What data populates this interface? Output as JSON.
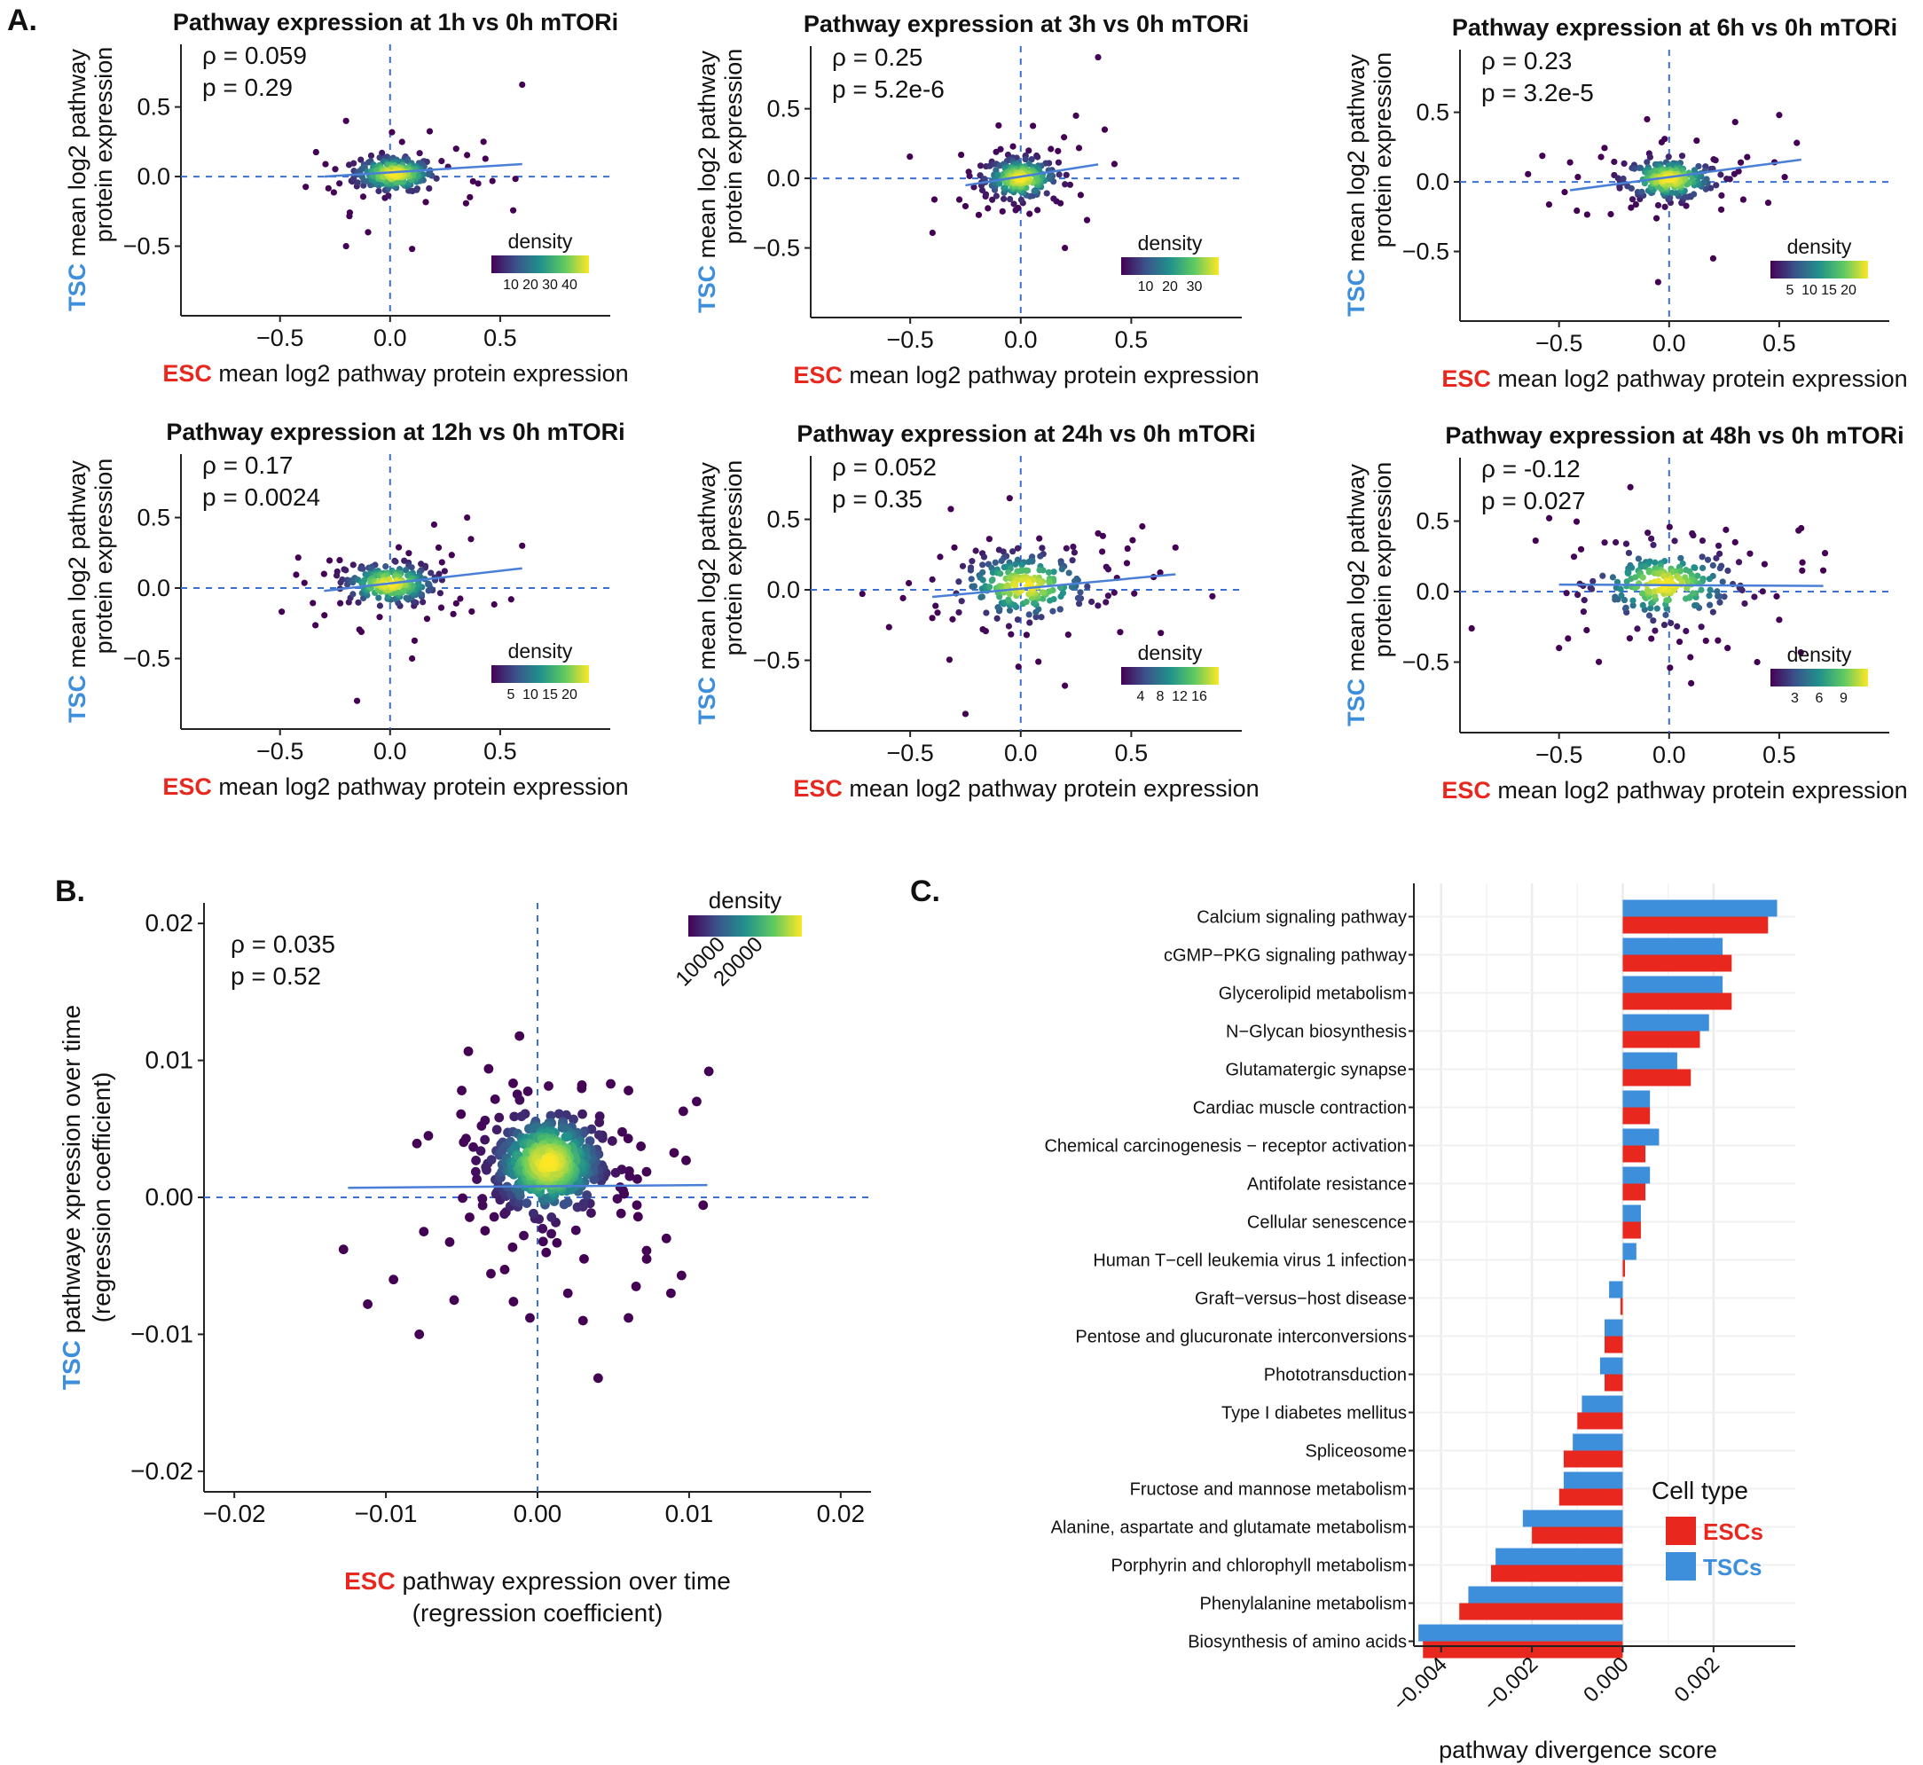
{
  "colors": {
    "esc": "#e8281e",
    "tsc": "#3d8fdc",
    "ref_line": "#3a6fd8",
    "fit_line": "#4a7fd8",
    "axis": "#222222",
    "grid": "#ebebeb"
  },
  "panel_labels": [
    "A.",
    "B.",
    "C."
  ],
  "chart_data": [
    {
      "type": "scatter",
      "panel": "A",
      "title": "Pathway expression at 1h vs 0h mTORi",
      "stats": [
        "ρ = 0.059",
        "p = 0.29"
      ],
      "xlabel_prefix": "ESC",
      "xlabel_rest": " mean log2 pathway protein expression",
      "ylabel_prefix": "TSC",
      "ylabel_line1": " mean log2 pathway",
      "ylabel_line2": "protein expression",
      "xlim": [
        -0.95,
        1.0
      ],
      "ylim": [
        -1.0,
        0.95
      ],
      "xticks": [
        -0.5,
        0.0,
        0.5
      ],
      "xtick_labels": [
        "−0.5",
        "0.0",
        "0.5"
      ],
      "yticks": [
        0.5,
        0.0,
        -0.5
      ],
      "ytick_labels": [
        "0.5",
        "0.0",
        "−0.5"
      ],
      "fit": [
        [
          -0.3,
          0.0
        ],
        [
          0.6,
          0.09
        ]
      ],
      "core": {
        "cx": 0.02,
        "cy": 0.02,
        "sx": 0.09,
        "sy": 0.06
      },
      "outliers": [
        [
          0.6,
          0.66
        ],
        [
          -0.2,
          -0.5
        ],
        [
          0.1,
          -0.52
        ],
        [
          -0.2,
          0.4
        ],
        [
          0.3,
          0.2
        ],
        [
          0.4,
          -0.05
        ],
        [
          -0.1,
          -0.4
        ]
      ],
      "density_label": "density",
      "density_ticks": [
        "10",
        "20",
        "30",
        "40"
      ]
    },
    {
      "type": "scatter",
      "panel": "A",
      "title": "Pathway expression at 3h vs 0h mTORi",
      "stats": [
        "ρ = 0.25",
        "p = 5.2e-6"
      ],
      "xlabel_prefix": "ESC",
      "xlabel_rest": " mean log2 pathway protein expression",
      "ylabel_prefix": "TSC",
      "ylabel_line1": " mean log2 pathway",
      "ylabel_line2": "protein expression",
      "xlim": [
        -0.95,
        1.0
      ],
      "ylim": [
        -1.0,
        0.95
      ],
      "xticks": [
        -0.5,
        0.0,
        0.5
      ],
      "xtick_labels": [
        "−0.5",
        "0.0",
        "0.5"
      ],
      "yticks": [
        0.5,
        0.0,
        -0.5
      ],
      "ytick_labels": [
        "0.5",
        "0.0",
        "−0.5"
      ],
      "fit": [
        [
          -0.25,
          -0.05
        ],
        [
          0.35,
          0.1
        ]
      ],
      "core": {
        "cx": 0.0,
        "cy": 0.0,
        "sx": 0.08,
        "sy": 0.07
      },
      "outliers": [
        [
          0.35,
          0.87
        ],
        [
          0.25,
          0.45
        ],
        [
          -0.1,
          0.38
        ],
        [
          0.38,
          0.35
        ],
        [
          0.2,
          -0.5
        ],
        [
          -0.25,
          -0.2
        ],
        [
          0.3,
          -0.3
        ]
      ],
      "density_label": "density",
      "density_ticks": [
        "10",
        "20",
        "30"
      ]
    },
    {
      "type": "scatter",
      "panel": "A",
      "title": "Pathway expression at 6h vs 0h mTORi",
      "stats": [
        "ρ = 0.23",
        "p = 3.2e-5"
      ],
      "xlabel_prefix": "ESC",
      "xlabel_rest": " mean log2 pathway protein expression",
      "ylabel_prefix": "TSC",
      "ylabel_line1": " mean log2 pathway",
      "ylabel_line2": "protein expression",
      "xlim": [
        -0.95,
        1.0
      ],
      "ylim": [
        -1.0,
        0.95
      ],
      "xticks": [
        -0.5,
        0.0,
        0.5
      ],
      "xtick_labels": [
        "−0.5",
        "0.0",
        "0.5"
      ],
      "yticks": [
        0.5,
        0.0,
        -0.5
      ],
      "ytick_labels": [
        "0.5",
        "0.0",
        "−0.5"
      ],
      "fit": [
        [
          -0.45,
          -0.06
        ],
        [
          0.6,
          0.16
        ]
      ],
      "core": {
        "cx": 0.0,
        "cy": 0.02,
        "sx": 0.1,
        "sy": 0.07
      },
      "outliers": [
        [
          -0.05,
          -0.72
        ],
        [
          0.5,
          0.48
        ],
        [
          0.58,
          0.28
        ],
        [
          0.3,
          0.43
        ],
        [
          0.45,
          -0.15
        ],
        [
          -0.45,
          0.14
        ],
        [
          -0.1,
          0.45
        ],
        [
          0.2,
          -0.55
        ]
      ],
      "density_label": "density",
      "density_ticks": [
        "5",
        "10",
        "15",
        "20"
      ]
    },
    {
      "type": "scatter",
      "panel": "A",
      "title": "Pathway expression at 12h vs 0h mTORi",
      "stats": [
        "ρ = 0.17",
        "p = 0.0024"
      ],
      "xlabel_prefix": "ESC",
      "xlabel_rest": " mean log2 pathway protein expression",
      "ylabel_prefix": "TSC",
      "ylabel_line1": " mean log2 pathway",
      "ylabel_line2": "protein expression",
      "xlim": [
        -0.95,
        1.0
      ],
      "ylim": [
        -1.0,
        0.95
      ],
      "xticks": [
        -0.5,
        0.0,
        0.5
      ],
      "xtick_labels": [
        "−0.5",
        "0.0",
        "0.5"
      ],
      "yticks": [
        0.5,
        0.0,
        -0.5
      ],
      "ytick_labels": [
        "0.5",
        "0.0",
        "−0.5"
      ],
      "fit": [
        [
          -0.3,
          -0.02
        ],
        [
          0.6,
          0.14
        ]
      ],
      "core": {
        "cx": 0.0,
        "cy": 0.03,
        "sx": 0.1,
        "sy": 0.07
      },
      "outliers": [
        [
          -0.15,
          -0.8
        ],
        [
          0.35,
          0.5
        ],
        [
          0.6,
          0.3
        ],
        [
          0.1,
          -0.5
        ],
        [
          -0.3,
          0.1
        ],
        [
          0.55,
          -0.08
        ],
        [
          0.2,
          0.45
        ]
      ],
      "density_label": "density",
      "density_ticks": [
        "5",
        "10",
        "15",
        "20"
      ]
    },
    {
      "type": "scatter",
      "panel": "A",
      "title": "Pathway expression at 24h vs 0h mTORi",
      "stats": [
        "ρ = 0.052",
        "p = 0.35"
      ],
      "xlabel_prefix": "ESC",
      "xlabel_rest": " mean log2 pathway protein expression",
      "ylabel_prefix": "TSC",
      "ylabel_line1": " mean log2 pathway",
      "ylabel_line2": "protein expression",
      "xlim": [
        -0.95,
        1.0
      ],
      "ylim": [
        -1.0,
        0.95
      ],
      "xticks": [
        -0.5,
        0.0,
        0.5
      ],
      "xtick_labels": [
        "−0.5",
        "0.0",
        "0.5"
      ],
      "yticks": [
        0.5,
        0.0,
        -0.5
      ],
      "ytick_labels": [
        "0.5",
        "0.0",
        "−0.5"
      ],
      "fit": [
        [
          -0.4,
          -0.05
        ],
        [
          0.7,
          0.11
        ]
      ],
      "core": {
        "cx": 0.02,
        "cy": 0.03,
        "sx": 0.14,
        "sy": 0.11
      },
      "outliers": [
        [
          -0.25,
          -0.88
        ],
        [
          -0.05,
          0.65
        ],
        [
          0.55,
          0.45
        ],
        [
          0.7,
          0.3
        ],
        [
          0.2,
          -0.68
        ],
        [
          -0.4,
          -0.2
        ],
        [
          0.45,
          -0.3
        ],
        [
          -0.3,
          0.3
        ],
        [
          0.35,
          0.4
        ]
      ],
      "density_label": "density",
      "density_ticks": [
        "4",
        "8",
        "12",
        "16"
      ]
    },
    {
      "type": "scatter",
      "panel": "A",
      "title": "Pathway expression at 48h vs 0h mTORi",
      "stats": [
        "ρ = -0.12",
        "p = 0.027"
      ],
      "xlabel_prefix": "ESC",
      "xlabel_rest": " mean log2 pathway protein expression",
      "ylabel_prefix": "TSC",
      "ylabel_line1": " mean log2 pathway",
      "ylabel_line2": "protein expression",
      "xlim": [
        -0.95,
        1.0
      ],
      "ylim": [
        -1.0,
        0.95
      ],
      "xticks": [
        -0.5,
        0.0,
        0.5
      ],
      "xtick_labels": [
        "−0.5",
        "0.0",
        "0.5"
      ],
      "yticks": [
        0.5,
        0.0,
        -0.5
      ],
      "ytick_labels": [
        "0.5",
        "0.0",
        "−0.5"
      ],
      "fit": [
        [
          -0.5,
          0.05
        ],
        [
          0.7,
          0.04
        ]
      ],
      "core": {
        "cx": -0.02,
        "cy": 0.05,
        "sx": 0.15,
        "sy": 0.12
      },
      "outliers": [
        [
          0.6,
          0.45
        ],
        [
          0.7,
          0.15
        ],
        [
          -0.5,
          -0.4
        ],
        [
          0.1,
          -0.65
        ],
        [
          0.4,
          -0.5
        ],
        [
          -0.4,
          0.3
        ],
        [
          0.3,
          0.35
        ],
        [
          0.5,
          -0.2
        ]
      ],
      "density_label": "density",
      "density_ticks": [
        "3",
        "6",
        "9"
      ]
    },
    {
      "type": "scatter",
      "panel": "B",
      "stats": [
        "ρ = 0.035",
        "p = 0.52"
      ],
      "xlabel_prefix": "ESC",
      "xlabel_rest": " pathway expression over time",
      "xlabel_line2": "(regression coefficient)",
      "ylabel_prefix": "TSC",
      "ylabel_rest": " pathwaye xpression over time",
      "ylabel_line2": "(regression coefficient)",
      "xlim": [
        -0.022,
        0.022
      ],
      "ylim": [
        -0.0215,
        0.0215
      ],
      "xticks": [
        -0.02,
        -0.01,
        0.0,
        0.01,
        0.02
      ],
      "xtick_labels": [
        "−0.02",
        "−0.01",
        "0.00",
        "0.01",
        "0.02"
      ],
      "yticks": [
        0.02,
        0.01,
        0.0,
        -0.01,
        -0.02
      ],
      "ytick_labels": [
        "0.02",
        "0.01",
        "0.00",
        "−0.01",
        "−0.02"
      ],
      "fit": [
        [
          -0.0125,
          0.0007
        ],
        [
          0.0112,
          0.0009
        ]
      ],
      "core": {
        "cx": 0.0007,
        "cy": 0.0025,
        "sx": 0.0017,
        "sy": 0.0017
      },
      "outliers": [
        [
          0.0113,
          0.0092
        ],
        [
          0.0105,
          0.007
        ],
        [
          0.0098,
          0.0027
        ],
        [
          0.006,
          0.0078
        ],
        [
          -0.005,
          0.0078
        ],
        [
          -0.0072,
          0.0045
        ],
        [
          -0.0078,
          -0.01
        ],
        [
          -0.0095,
          -0.006
        ],
        [
          -0.0112,
          -0.0078
        ],
        [
          -0.0128,
          -0.0038
        ],
        [
          -0.0055,
          -0.0075
        ],
        [
          0.004,
          -0.0132
        ],
        [
          0.006,
          -0.0088
        ],
        [
          0.0088,
          -0.007
        ],
        [
          0.0095,
          -0.0057
        ],
        [
          0.0072,
          -0.0045
        ],
        [
          0.003,
          -0.009
        ],
        [
          -0.0005,
          -0.0088
        ],
        [
          0.0085,
          -0.003
        ],
        [
          -0.0075,
          -0.0025
        ],
        [
          0.002,
          -0.007
        ],
        [
          0.0065,
          -0.0065
        ]
      ],
      "density_label": "density",
      "density_ticks": [
        "10000",
        "20000"
      ]
    },
    {
      "type": "bar",
      "panel": "C",
      "orientation": "horizontal",
      "xlabel": "pathway divergence score",
      "xlim": [
        -0.0046,
        0.0038
      ],
      "xticks": [
        -0.004,
        -0.002,
        0.0,
        0.002
      ],
      "xtick_labels": [
        "−0.004",
        "−0.002",
        "0.000",
        "0.002"
      ],
      "legend_title": "Cell type",
      "legend_position": "bottom-right",
      "series": [
        {
          "name": "ESCs",
          "color": "#e8281e"
        },
        {
          "name": "TSCs",
          "color": "#3d8fdc"
        }
      ],
      "categories": [
        "Calcium signaling pathway",
        "cGMP−PKG signaling pathway",
        "Glycerolipid metabolism",
        "N−Glycan biosynthesis",
        "Glutamatergic synapse",
        "Cardiac muscle contraction",
        "Chemical carcinogenesis − receptor activation",
        "Antifolate resistance",
        "Cellular senescence",
        "Human T−cell leukemia virus 1 infection",
        "Graft−versus−host disease",
        "Pentose and glucuronate interconversions",
        "Phototransduction",
        "Type I diabetes mellitus",
        "Spliceosome",
        "Fructose and mannose metabolism",
        "Alanine, aspartate and glutamate metabolism",
        "Porphyrin and chlorophyll metabolism",
        "Phenylalanine metabolism",
        "Biosynthesis of amino acids"
      ],
      "esc_values": [
        0.0032,
        0.0024,
        0.0024,
        0.0017,
        0.0015,
        0.0006,
        0.0005,
        0.0005,
        0.0004,
        5e-05,
        -5e-05,
        -0.0004,
        -0.0004,
        -0.001,
        -0.0013,
        -0.0014,
        -0.002,
        -0.0029,
        -0.0036,
        -0.0044
      ],
      "tsc_values": [
        0.0034,
        0.0022,
        0.0022,
        0.0019,
        0.0012,
        0.0006,
        0.0008,
        0.0006,
        0.0004,
        0.0003,
        -0.0003,
        -0.0004,
        -0.0005,
        -0.0009,
        -0.0011,
        -0.0013,
        -0.0022,
        -0.0028,
        -0.0034,
        -0.0045
      ]
    }
  ]
}
